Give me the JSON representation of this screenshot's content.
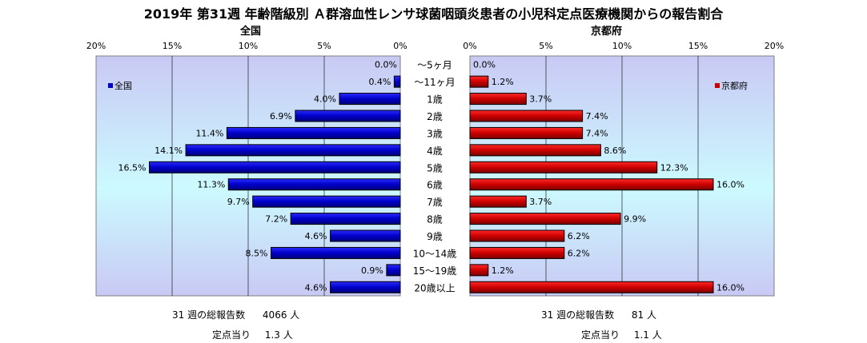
{
  "page": {
    "title": "2019年 第31週 年齢階級別 Ａ群溶血性レンサ球菌咽頭炎患者の小児科定点医療機関からの報告割合"
  },
  "chart_data": {
    "type": "bar",
    "orientation": "horizontal",
    "categories": [
      "～5ヶ月",
      "～11ヶ月",
      "1歳",
      "2歳",
      "3歳",
      "4歳",
      "5歳",
      "6歳",
      "7歳",
      "8歳",
      "9歳",
      "10～14歳",
      "15～19歳",
      "20歳以上"
    ],
    "xlim": [
      0,
      20
    ],
    "ticks": [
      "0%",
      "5%",
      "10%",
      "15%",
      "20%"
    ],
    "panels": [
      {
        "id": "national",
        "title": "全国",
        "legend": "全国",
        "legend_position": "top-left",
        "direction": "reversed",
        "color": "#0000cc",
        "values": [
          0.0,
          0.4,
          4.0,
          6.9,
          11.4,
          14.1,
          16.5,
          11.3,
          9.7,
          7.2,
          4.6,
          8.5,
          0.9,
          4.6
        ],
        "labels": [
          "0.0%",
          "0.4%",
          "4.0%",
          "6.9%",
          "11.4%",
          "14.1%",
          "16.5%",
          "11.3%",
          "9.7%",
          "7.2%",
          "4.6%",
          "8.5%",
          "0.9%",
          "4.6%"
        ]
      },
      {
        "id": "kyoto",
        "title": "京都府",
        "legend": "京都府",
        "legend_position": "top-right",
        "direction": "normal",
        "color": "#cc0000",
        "values": [
          0.0,
          1.2,
          3.7,
          7.4,
          7.4,
          8.6,
          12.3,
          16.0,
          3.7,
          9.9,
          6.2,
          6.2,
          1.2,
          16.0
        ],
        "labels": [
          "0.0%",
          "1.2%",
          "3.7%",
          "7.4%",
          "7.4%",
          "8.6%",
          "12.3%",
          "16.0%",
          "3.7%",
          "9.9%",
          "6.2%",
          "6.2%",
          "1.2%",
          "16.0%"
        ]
      }
    ]
  },
  "summary": {
    "national": {
      "total_label": "31 週の総報告数",
      "total_value": "4066 人",
      "per_label": "定点当り",
      "per_value": "1.3 人"
    },
    "kyoto": {
      "total_label": "31 週の総報告数",
      "total_value": "81 人",
      "per_label": "定点当り",
      "per_value": "1.1 人"
    }
  }
}
